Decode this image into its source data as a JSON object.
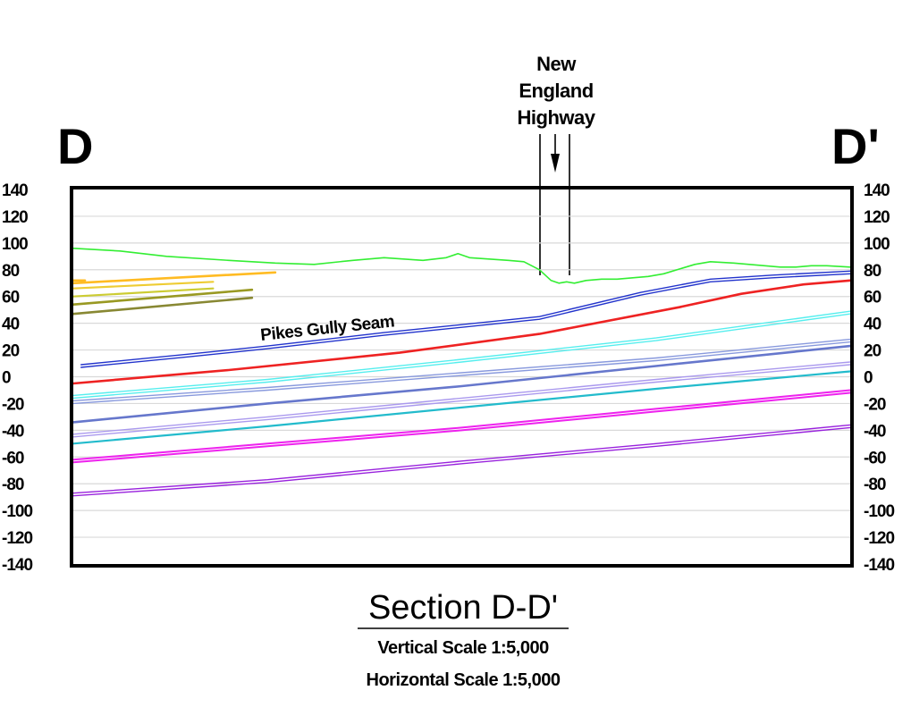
{
  "section": {
    "start_label": "D",
    "end_label": "D'",
    "title": "Section D-D'",
    "vertical_scale": "Vertical Scale 1:5,000",
    "horizontal_scale": "Horizontal Scale 1:5,000"
  },
  "annotations": {
    "road_lines": [
      "New",
      "England",
      "Highway"
    ],
    "seam_label": "Pikes Gully Seam"
  },
  "colors": {
    "surface": "#33ee33",
    "frame": "#000000",
    "grid": "#d9d9d9"
  },
  "chart_data": {
    "type": "line",
    "title": "Section D-D'",
    "ylim": [
      -140,
      140
    ],
    "xlim": [
      0,
      100
    ],
    "y_ticks": [
      "140",
      "120",
      "100",
      "80",
      "60",
      "40",
      "20",
      "0",
      "-20",
      "-40",
      "-60",
      "-80",
      "-100",
      "-120",
      "-140"
    ],
    "grid": true,
    "legend": "none",
    "series": [
      {
        "kind": "surface",
        "color": "#33ee33",
        "width": 1.6,
        "double": false,
        "points": [
          [
            0,
            96
          ],
          [
            6,
            94
          ],
          [
            12,
            90
          ],
          [
            20,
            87
          ],
          [
            26,
            85
          ],
          [
            31,
            84
          ],
          [
            36,
            87
          ],
          [
            40,
            89
          ],
          [
            45,
            87
          ],
          [
            48,
            89
          ],
          [
            49.5,
            92
          ],
          [
            51,
            89
          ],
          [
            56,
            87
          ],
          [
            58,
            86
          ],
          [
            60,
            80
          ],
          [
            61.5,
            72
          ],
          [
            62.5,
            70
          ],
          [
            63.5,
            71
          ],
          [
            64.5,
            70
          ],
          [
            66,
            72
          ],
          [
            68,
            73
          ],
          [
            70,
            73
          ],
          [
            72,
            74
          ],
          [
            74,
            75
          ],
          [
            76,
            77
          ],
          [
            80,
            84
          ],
          [
            82,
            86
          ],
          [
            85,
            85
          ],
          [
            87,
            84
          ],
          [
            89,
            83
          ],
          [
            91,
            82
          ],
          [
            93,
            82
          ],
          [
            95,
            83
          ],
          [
            97,
            83
          ],
          [
            100,
            82
          ]
        ]
      },
      {
        "kind": "seam",
        "color": "#2233cc",
        "width": 1.4,
        "double": true,
        "gap": 3,
        "points": [
          [
            1,
            8
          ],
          [
            15,
            16
          ],
          [
            25,
            22
          ],
          [
            40,
            32
          ],
          [
            60,
            44
          ],
          [
            73,
            62
          ],
          [
            82,
            72
          ],
          [
            90,
            75
          ],
          [
            100,
            78
          ]
        ]
      },
      {
        "kind": "seam",
        "color": "#ee2222",
        "width": 2.6,
        "double": false,
        "points": [
          [
            0,
            -5
          ],
          [
            20,
            5
          ],
          [
            42,
            18
          ],
          [
            60,
            32
          ],
          [
            78,
            52
          ],
          [
            86,
            62
          ],
          [
            94,
            69
          ],
          [
            100,
            72
          ]
        ]
      },
      {
        "kind": "seam",
        "color": "#55eeee",
        "width": 1.4,
        "double": true,
        "gap": 3,
        "points": [
          [
            0,
            -15
          ],
          [
            25,
            -3
          ],
          [
            50,
            12
          ],
          [
            75,
            28
          ],
          [
            100,
            48
          ]
        ]
      },
      {
        "kind": "seam",
        "color": "#8899dd",
        "width": 1.4,
        "double": true,
        "gap": 3,
        "points": [
          [
            0,
            -19
          ],
          [
            25,
            -9
          ],
          [
            50,
            2
          ],
          [
            75,
            13
          ],
          [
            100,
            27
          ]
        ]
      },
      {
        "kind": "seam",
        "color": "#6677cc",
        "width": 2.6,
        "double": false,
        "points": [
          [
            0,
            -34
          ],
          [
            25,
            -20
          ],
          [
            50,
            -7
          ],
          [
            75,
            8
          ],
          [
            100,
            23
          ]
        ]
      },
      {
        "kind": "seam",
        "color": "#aa99ee",
        "width": 1.4,
        "double": true,
        "gap": 3,
        "points": [
          [
            0,
            -44
          ],
          [
            25,
            -31
          ],
          [
            50,
            -17
          ],
          [
            75,
            -3
          ],
          [
            100,
            10
          ]
        ]
      },
      {
        "kind": "seam",
        "color": "#22bbcc",
        "width": 2.2,
        "double": false,
        "points": [
          [
            0,
            -50
          ],
          [
            25,
            -37
          ],
          [
            50,
            -23
          ],
          [
            75,
            -9
          ],
          [
            100,
            4
          ]
        ]
      },
      {
        "kind": "seam",
        "color": "#ee22ee",
        "width": 2.0,
        "double": true,
        "gap": 3,
        "points": [
          [
            0,
            -63
          ],
          [
            25,
            -51
          ],
          [
            50,
            -39
          ],
          [
            75,
            -25
          ],
          [
            100,
            -11
          ]
        ]
      },
      {
        "kind": "seam",
        "color": "#9922dd",
        "width": 1.4,
        "double": true,
        "gap": 3,
        "points": [
          [
            0,
            -88
          ],
          [
            25,
            -78
          ],
          [
            50,
            -64
          ],
          [
            75,
            -51
          ],
          [
            100,
            -37
          ]
        ]
      },
      {
        "kind": "seam",
        "color": "#ffbb22",
        "width": 2.6,
        "double": false,
        "points": [
          [
            0,
            70
          ],
          [
            26,
            78
          ]
        ]
      },
      {
        "kind": "seam",
        "color": "#ffbb22",
        "width": 2.6,
        "double": false,
        "points": [
          [
            0,
            72
          ],
          [
            1.5,
            72
          ]
        ]
      },
      {
        "kind": "seam",
        "color": "#eecc33",
        "width": 2.2,
        "double": false,
        "points": [
          [
            0,
            66
          ],
          [
            18,
            71
          ]
        ]
      },
      {
        "kind": "seam",
        "color": "#cccc33",
        "width": 2.2,
        "double": false,
        "points": [
          [
            0,
            60
          ],
          [
            18,
            66
          ]
        ]
      },
      {
        "kind": "seam",
        "color": "#999922",
        "width": 2.6,
        "double": false,
        "points": [
          [
            0,
            54
          ],
          [
            23,
            65
          ]
        ]
      },
      {
        "kind": "seam",
        "color": "#888833",
        "width": 2.6,
        "double": false,
        "points": [
          [
            0,
            47
          ],
          [
            23,
            59
          ]
        ]
      }
    ]
  }
}
